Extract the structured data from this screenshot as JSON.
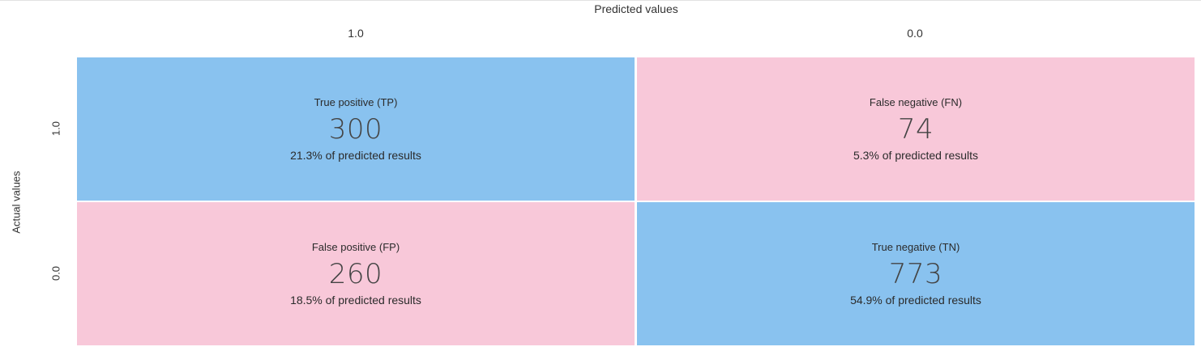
{
  "axis": {
    "x_title": "Predicted values",
    "y_title": "Actual values",
    "col_labels": [
      "1.0",
      "0.0"
    ],
    "row_labels": [
      "1.0",
      "0.0"
    ]
  },
  "colors": {
    "positive_cell": "#89c2ef",
    "negative_cell": "#f8c8d9"
  },
  "cells": [
    {
      "title": "True positive (TP)",
      "value": "300",
      "pct": "21.3% of predicted results",
      "color": "#89c2ef"
    },
    {
      "title": "False negative (FN)",
      "value": "74",
      "pct": "5.3% of predicted results",
      "color": "#f8c8d9"
    },
    {
      "title": "False positive (FP)",
      "value": "260",
      "pct": "18.5% of predicted results",
      "color": "#f8c8d9"
    },
    {
      "title": "True negative (TN)",
      "value": "773",
      "pct": "54.9% of predicted results",
      "color": "#89c2ef"
    }
  ],
  "chart_data": {
    "type": "heatmap",
    "xlabel": "Predicted values",
    "ylabel": "Actual values",
    "x_categories": [
      "1.0",
      "0.0"
    ],
    "y_categories": [
      "1.0",
      "0.0"
    ],
    "values": [
      [
        300,
        74
      ],
      [
        260,
        773
      ]
    ],
    "cell_labels": [
      [
        "True positive (TP)",
        "False negative (FN)"
      ],
      [
        "False positive (FP)",
        "True negative (TN)"
      ]
    ],
    "percentages": [
      [
        21.3,
        5.3
      ],
      [
        18.5,
        54.9
      ]
    ]
  }
}
